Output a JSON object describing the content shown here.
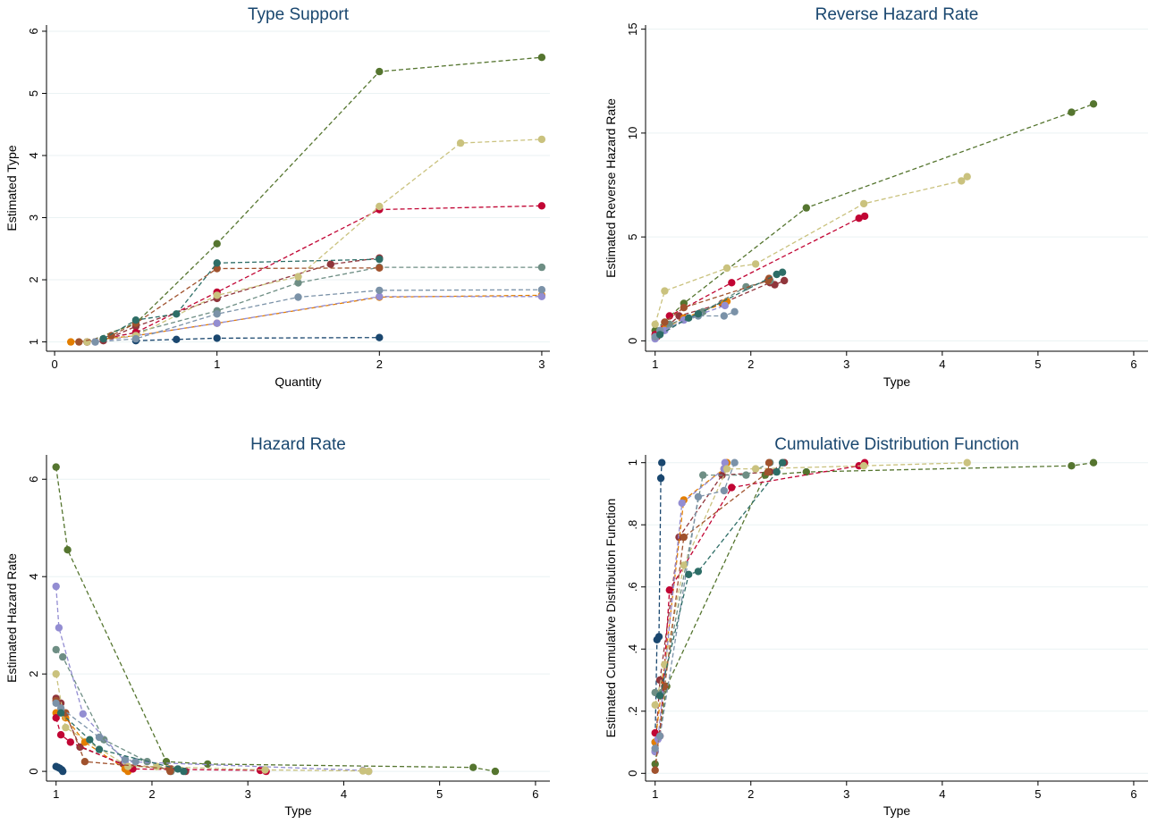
{
  "colors": [
    "#1a476f",
    "#90353b",
    "#55752f",
    "#e37e00",
    "#6e8e84",
    "#c10534",
    "#938dd2",
    "#cac27e",
    "#a0522d",
    "#7b92a8",
    "#2d6d66"
  ],
  "chart_data": [
    {
      "type": "line",
      "title": "Type Support",
      "xlabel": "Quantity",
      "ylabel": "Estimated Type",
      "xlim": [
        -0.05,
        3.05
      ],
      "ylim": [
        0.85,
        6.1
      ],
      "xticks": [
        0,
        1,
        2,
        3
      ],
      "xtick_labels": [
        "0",
        "1",
        "2",
        "3"
      ],
      "yticks": [
        1,
        2,
        3,
        4,
        5,
        6
      ],
      "ytick_labels": [
        "1",
        "2",
        "3",
        "4",
        "5",
        "6"
      ],
      "grid": true,
      "series": [
        {
          "x": [
            0.5,
            0.75,
            1,
            2
          ],
          "y": [
            1.02,
            1.04,
            1.06,
            1.07
          ]
        },
        {
          "x": [
            0.3,
            0.5,
            1,
            1.7,
            2
          ],
          "y": [
            1.02,
            1.25,
            1.7,
            2.25,
            2.35
          ]
        },
        {
          "x": [
            0.2,
            0.5,
            1,
            2,
            3
          ],
          "y": [
            1.0,
            1.3,
            2.58,
            5.35,
            5.58
          ]
        },
        {
          "x": [
            0.1,
            0.5,
            1,
            2,
            3
          ],
          "y": [
            1.0,
            1.1,
            1.3,
            1.72,
            1.75
          ]
        },
        {
          "x": [
            0.2,
            0.5,
            1,
            1.5,
            2,
            3
          ],
          "y": [
            1.0,
            1.15,
            1.5,
            1.95,
            2.2,
            2.2
          ]
        },
        {
          "x": [
            0.2,
            0.5,
            1,
            2,
            3
          ],
          "y": [
            1.0,
            1.15,
            1.8,
            3.13,
            3.19
          ]
        },
        {
          "x": [
            0.25,
            0.5,
            1,
            2,
            3
          ],
          "y": [
            1.0,
            1.1,
            1.3,
            1.73,
            1.73
          ]
        },
        {
          "x": [
            0.2,
            0.5,
            1,
            1.5,
            2,
            2.5,
            3
          ],
          "y": [
            1.0,
            1.1,
            1.75,
            2.05,
            3.18,
            4.2,
            4.26
          ]
        },
        {
          "x": [
            0.15,
            0.35,
            0.5,
            1,
            2
          ],
          "y": [
            1.0,
            1.1,
            1.3,
            2.18,
            2.19
          ]
        },
        {
          "x": [
            0.25,
            0.5,
            1,
            1.5,
            2,
            3
          ],
          "y": [
            1.0,
            1.05,
            1.45,
            1.72,
            1.83,
            1.84
          ]
        },
        {
          "x": [
            0.3,
            0.5,
            0.75,
            1,
            2
          ],
          "y": [
            1.05,
            1.35,
            1.45,
            2.27,
            2.33
          ]
        }
      ]
    },
    {
      "type": "line",
      "title": "Reverse Hazard Rate",
      "xlabel": "Type",
      "ylabel": "Estimated Reverse Hazard Rate",
      "xlim": [
        0.9,
        6.15
      ],
      "ylim": [
        -0.5,
        15.2
      ],
      "xticks": [
        1,
        2,
        3,
        4,
        5,
        6
      ],
      "xtick_labels": [
        "1",
        "2",
        "3",
        "4",
        "5",
        "6"
      ],
      "yticks": [
        0,
        5,
        10,
        15
      ],
      "ytick_labels": [
        "0",
        "5",
        "10",
        "15"
      ],
      "grid": true,
      "series": [
        {
          "x": [
            1.0,
            1.02,
            1.04,
            1.06,
            1.07
          ],
          "y": [
            0.2,
            0.3,
            0.4,
            0.45,
            0.5
          ]
        },
        {
          "x": [
            1.02,
            1.1,
            1.25,
            1.7,
            2.2,
            2.25,
            2.35
          ],
          "y": [
            0.2,
            0.6,
            1.2,
            1.8,
            2.8,
            2.7,
            2.9
          ]
        },
        {
          "x": [
            1.0,
            1.3,
            2.58,
            5.35,
            5.58
          ],
          "y": [
            0.5,
            1.8,
            6.4,
            11.0,
            11.4
          ]
        },
        {
          "x": [
            1.0,
            1.1,
            1.3,
            1.72,
            1.75
          ],
          "y": [
            0.2,
            0.6,
            1.1,
            1.8,
            1.9
          ]
        },
        {
          "x": [
            1.0,
            1.15,
            1.5,
            1.95,
            2.2
          ],
          "y": [
            0.3,
            0.8,
            1.4,
            2.6,
            2.9
          ]
        },
        {
          "x": [
            1.0,
            1.15,
            1.8,
            3.13,
            3.19
          ],
          "y": [
            0.3,
            1.2,
            2.8,
            5.9,
            6.0
          ]
        },
        {
          "x": [
            1.0,
            1.1,
            1.3,
            1.73
          ],
          "y": [
            0.1,
            0.5,
            1.0,
            1.7
          ]
        },
        {
          "x": [
            1.0,
            1.1,
            1.75,
            2.05,
            3.18,
            4.2,
            4.26
          ],
          "y": [
            0.8,
            2.4,
            3.5,
            3.7,
            6.6,
            7.7,
            7.9
          ]
        },
        {
          "x": [
            1.0,
            1.1,
            1.3,
            2.18,
            2.19
          ],
          "y": [
            0.2,
            0.9,
            1.6,
            2.9,
            3.0
          ]
        },
        {
          "x": [
            1.0,
            1.05,
            1.45,
            1.72,
            1.83
          ],
          "y": [
            0.2,
            0.5,
            1.2,
            1.2,
            1.4
          ]
        },
        {
          "x": [
            1.05,
            1.35,
            1.45,
            2.27,
            2.33
          ],
          "y": [
            0.3,
            1.1,
            1.3,
            3.2,
            3.3
          ]
        }
      ]
    },
    {
      "type": "line",
      "title": "Hazard Rate",
      "xlabel": "Type",
      "ylabel": "Estimated Hazard Rate",
      "xlim": [
        0.9,
        6.15
      ],
      "ylim": [
        -0.2,
        6.5
      ],
      "xticks": [
        1,
        2,
        3,
        4,
        5,
        6
      ],
      "xtick_labels": [
        "1",
        "2",
        "3",
        "4",
        "5",
        "6"
      ],
      "yticks": [
        0,
        2,
        4,
        6
      ],
      "ytick_labels": [
        "0",
        "2",
        "4",
        "6"
      ],
      "grid": true,
      "series": [
        {
          "x": [
            1.0,
            1.02,
            1.04,
            1.06,
            1.07
          ],
          "y": [
            0.1,
            0.08,
            0.06,
            0.03,
            0.0
          ]
        },
        {
          "x": [
            1.0,
            1.05,
            1.25,
            1.7,
            2.2,
            2.35
          ],
          "y": [
            1.5,
            1.4,
            0.5,
            0.15,
            0.05,
            0.0
          ]
        },
        {
          "x": [
            1.0,
            1.12,
            2.15,
            2.58,
            5.35,
            5.58
          ],
          "y": [
            6.25,
            4.55,
            0.2,
            0.15,
            0.08,
            0.0
          ]
        },
        {
          "x": [
            1.0,
            1.1,
            1.3,
            1.72,
            1.75
          ],
          "y": [
            1.2,
            1.1,
            0.6,
            0.05,
            0.0
          ]
        },
        {
          "x": [
            1.0,
            1.07,
            1.5,
            1.95,
            2.2
          ],
          "y": [
            2.5,
            2.35,
            0.65,
            0.2,
            0.0
          ]
        },
        {
          "x": [
            1.0,
            1.05,
            1.15,
            1.8,
            3.13,
            3.19
          ],
          "y": [
            1.1,
            0.75,
            0.6,
            0.05,
            0.02,
            0.0
          ]
        },
        {
          "x": [
            1.0,
            1.03,
            1.28,
            1.72,
            4.2,
            4.26
          ],
          "y": [
            3.8,
            2.95,
            1.18,
            0.2,
            0.02,
            0.0
          ]
        },
        {
          "x": [
            1.0,
            1.1,
            1.75,
            2.05,
            3.18,
            4.2,
            4.26
          ],
          "y": [
            2.0,
            0.9,
            0.1,
            0.1,
            0.03,
            0.01,
            0.0
          ]
        },
        {
          "x": [
            1.0,
            1.1,
            1.3,
            2.18,
            2.19
          ],
          "y": [
            1.45,
            1.2,
            0.2,
            0.05,
            0.0
          ]
        },
        {
          "x": [
            1.0,
            1.05,
            1.45,
            1.72,
            1.83
          ],
          "y": [
            1.4,
            1.3,
            0.7,
            0.25,
            0.2
          ]
        },
        {
          "x": [
            1.05,
            1.35,
            1.45,
            2.27,
            2.33
          ],
          "y": [
            1.2,
            0.65,
            0.45,
            0.05,
            0.0
          ]
        }
      ]
    },
    {
      "type": "line",
      "title": "Cumulative Distribution Function",
      "xlabel": "Type",
      "ylabel": "Estimated Cumulative Distribution Function",
      "xlim": [
        0.9,
        6.15
      ],
      "ylim": [
        -0.025,
        1.025
      ],
      "xticks": [
        1,
        2,
        3,
        4,
        5,
        6
      ],
      "xtick_labels": [
        "1",
        "2",
        "3",
        "4",
        "5",
        "6"
      ],
      "yticks": [
        0,
        0.2,
        0.4,
        0.6,
        0.8,
        1
      ],
      "ytick_labels": [
        "0",
        ".2",
        ".4",
        ".6",
        ".8",
        "1"
      ],
      "grid": true,
      "series": [
        {
          "x": [
            1.0,
            1.02,
            1.04,
            1.06,
            1.07
          ],
          "y": [
            0.1,
            0.43,
            0.44,
            0.95,
            1.0
          ]
        },
        {
          "x": [
            1.0,
            1.05,
            1.25,
            1.7,
            2.2,
            2.35
          ],
          "y": [
            0.07,
            0.3,
            0.76,
            0.96,
            0.97,
            1.0
          ]
        },
        {
          "x": [
            1.0,
            1.12,
            2.15,
            2.58,
            5.35,
            5.58
          ],
          "y": [
            0.03,
            0.28,
            0.96,
            0.97,
            0.99,
            1.0
          ]
        },
        {
          "x": [
            1.0,
            1.1,
            1.3,
            1.72,
            1.75
          ],
          "y": [
            0.1,
            0.35,
            0.88,
            0.98,
            1.0
          ]
        },
        {
          "x": [
            1.0,
            1.07,
            1.5,
            1.95,
            2.2
          ],
          "y": [
            0.26,
            0.26,
            0.96,
            0.96,
            1.0
          ]
        },
        {
          "x": [
            1.0,
            1.05,
            1.15,
            1.8,
            3.13,
            3.19
          ],
          "y": [
            0.13,
            0.12,
            0.59,
            0.92,
            0.99,
            1.0
          ]
        },
        {
          "x": [
            1.0,
            1.03,
            1.28,
            1.72,
            1.73
          ],
          "y": [
            0.07,
            0.11,
            0.87,
            0.98,
            1.0
          ]
        },
        {
          "x": [
            1.0,
            1.1,
            1.3,
            1.75,
            2.05,
            3.18,
            4.26
          ],
          "y": [
            0.22,
            0.35,
            0.67,
            0.98,
            0.98,
            0.99,
            1.0
          ]
        },
        {
          "x": [
            1.0,
            1.1,
            1.3,
            2.18,
            2.19
          ],
          "y": [
            0.01,
            0.28,
            0.76,
            0.97,
            1.0
          ]
        },
        {
          "x": [
            1.0,
            1.05,
            1.45,
            1.72,
            1.83
          ],
          "y": [
            0.08,
            0.12,
            0.89,
            0.91,
            1.0
          ]
        },
        {
          "x": [
            1.05,
            1.35,
            1.45,
            2.27,
            2.33
          ],
          "y": [
            0.25,
            0.64,
            0.65,
            0.97,
            1.0
          ]
        }
      ]
    }
  ]
}
